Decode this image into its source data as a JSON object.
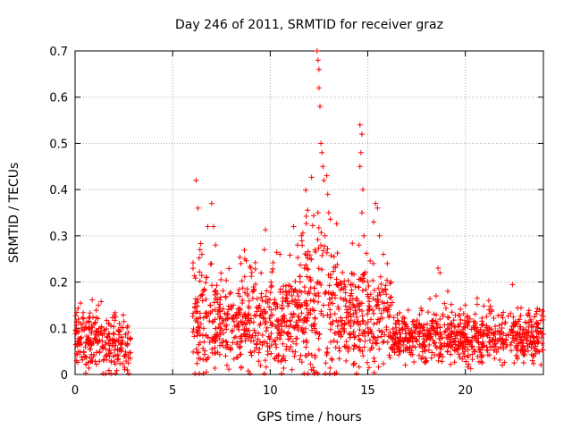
{
  "chart_data": {
    "type": "scatter",
    "title": "Day 246 of 2011, SRMTID for receiver graz",
    "xlabel": "GPS time / hours",
    "ylabel": "SRMTID / TECUs",
    "xlim": [
      0,
      24
    ],
    "ylim": [
      0,
      0.7
    ],
    "xticks": [
      "0",
      "5",
      "10",
      "15",
      "20"
    ],
    "yticks": [
      "0",
      "0.1",
      "0.2",
      "0.3",
      "0.4",
      "0.5",
      "0.6",
      "0.7"
    ],
    "grid": true,
    "marker": "+",
    "color": "#ff0000",
    "series": [
      {
        "name": "SRMTID",
        "segments": [
          {
            "start": 0.0,
            "end": 2.85,
            "base": 0.065,
            "spread": 0.05,
            "count": 260
          },
          {
            "start": 6.0,
            "end": 7.5,
            "base": 0.12,
            "spread": 0.09,
            "count": 150
          },
          {
            "start": 7.5,
            "end": 11.5,
            "base": 0.11,
            "spread": 0.08,
            "count": 380
          },
          {
            "start": 11.5,
            "end": 13.5,
            "base": 0.14,
            "spread": 0.12,
            "count": 200
          },
          {
            "start": 13.5,
            "end": 16.2,
            "base": 0.12,
            "spread": 0.08,
            "count": 260
          },
          {
            "start": 16.2,
            "end": 24.0,
            "base": 0.08,
            "spread": 0.04,
            "count": 700
          }
        ],
        "peaks": [
          [
            6.2,
            0.42
          ],
          [
            6.3,
            0.36
          ],
          [
            6.4,
            0.27
          ],
          [
            6.5,
            0.26
          ],
          [
            6.8,
            0.32
          ],
          [
            7.0,
            0.37
          ],
          [
            7.1,
            0.32
          ],
          [
            7.2,
            0.28
          ],
          [
            8.5,
            0.24
          ],
          [
            8.7,
            0.25
          ],
          [
            9.7,
            0.27
          ],
          [
            10.5,
            0.26
          ],
          [
            11.2,
            0.32
          ],
          [
            11.4,
            0.28
          ],
          [
            11.6,
            0.3
          ],
          [
            12.1,
            0.25
          ],
          [
            12.4,
            0.7
          ],
          [
            12.45,
            0.68
          ],
          [
            12.5,
            0.66
          ],
          [
            12.5,
            0.62
          ],
          [
            12.55,
            0.58
          ],
          [
            12.6,
            0.5
          ],
          [
            12.65,
            0.48
          ],
          [
            12.7,
            0.45
          ],
          [
            12.75,
            0.42
          ],
          [
            12.45,
            0.35
          ],
          [
            12.9,
            0.43
          ],
          [
            12.95,
            0.39
          ],
          [
            13.0,
            0.35
          ],
          [
            12.8,
            0.3
          ],
          [
            14.6,
            0.54
          ],
          [
            14.7,
            0.52
          ],
          [
            14.65,
            0.48
          ],
          [
            14.6,
            0.45
          ],
          [
            14.75,
            0.4
          ],
          [
            14.7,
            0.35
          ],
          [
            14.8,
            0.3
          ],
          [
            14.55,
            0.28
          ],
          [
            15.4,
            0.37
          ],
          [
            15.5,
            0.36
          ],
          [
            15.3,
            0.33
          ],
          [
            15.6,
            0.3
          ],
          [
            15.8,
            0.26
          ],
          [
            16.0,
            0.24
          ],
          [
            16.2,
            0.2
          ],
          [
            18.6,
            0.23
          ],
          [
            18.7,
            0.22
          ],
          [
            18.5,
            0.17
          ],
          [
            19.1,
            0.18
          ],
          [
            20.0,
            0.15
          ],
          [
            21.2,
            0.16
          ],
          [
            23.8,
            0.14
          ]
        ]
      }
    ]
  }
}
